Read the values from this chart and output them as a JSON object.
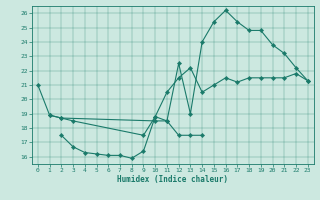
{
  "bg_color": "#cce8e0",
  "line_color": "#1a7a6a",
  "xlim": [
    -0.5,
    23.5
  ],
  "ylim": [
    15.5,
    26.5
  ],
  "xticks": [
    0,
    1,
    2,
    3,
    4,
    5,
    6,
    7,
    8,
    9,
    10,
    11,
    12,
    13,
    14,
    15,
    16,
    17,
    18,
    19,
    20,
    21,
    22,
    23
  ],
  "yticks": [
    16,
    17,
    18,
    19,
    20,
    21,
    22,
    23,
    24,
    25,
    26
  ],
  "xlabel": "Humidex (Indice chaleur)",
  "line1_x": [
    0,
    1,
    2,
    10,
    11,
    12,
    13,
    14,
    15,
    16,
    17,
    18,
    19,
    20,
    21,
    22,
    23
  ],
  "line1_y": [
    21.0,
    18.9,
    18.7,
    18.5,
    18.5,
    22.5,
    19.0,
    24.0,
    25.4,
    26.2,
    25.4,
    24.8,
    24.8,
    23.8,
    23.2,
    22.2,
    21.3
  ],
  "line2_x": [
    1,
    2,
    3,
    9,
    10,
    11,
    12,
    13,
    14,
    15,
    16,
    17,
    18,
    19,
    20,
    21,
    22,
    23
  ],
  "line2_y": [
    18.9,
    18.7,
    18.5,
    17.5,
    18.8,
    20.5,
    21.5,
    22.2,
    20.5,
    21.0,
    21.5,
    21.2,
    21.5,
    21.5,
    21.5,
    21.5,
    21.8,
    21.3
  ],
  "line3_x": [
    2,
    3,
    4,
    5,
    6,
    7,
    8,
    9,
    10,
    11,
    12,
    13,
    14
  ],
  "line3_y": [
    17.5,
    16.7,
    16.3,
    16.2,
    16.1,
    16.1,
    15.9,
    16.4,
    18.8,
    18.5,
    17.5,
    17.5,
    17.5
  ]
}
